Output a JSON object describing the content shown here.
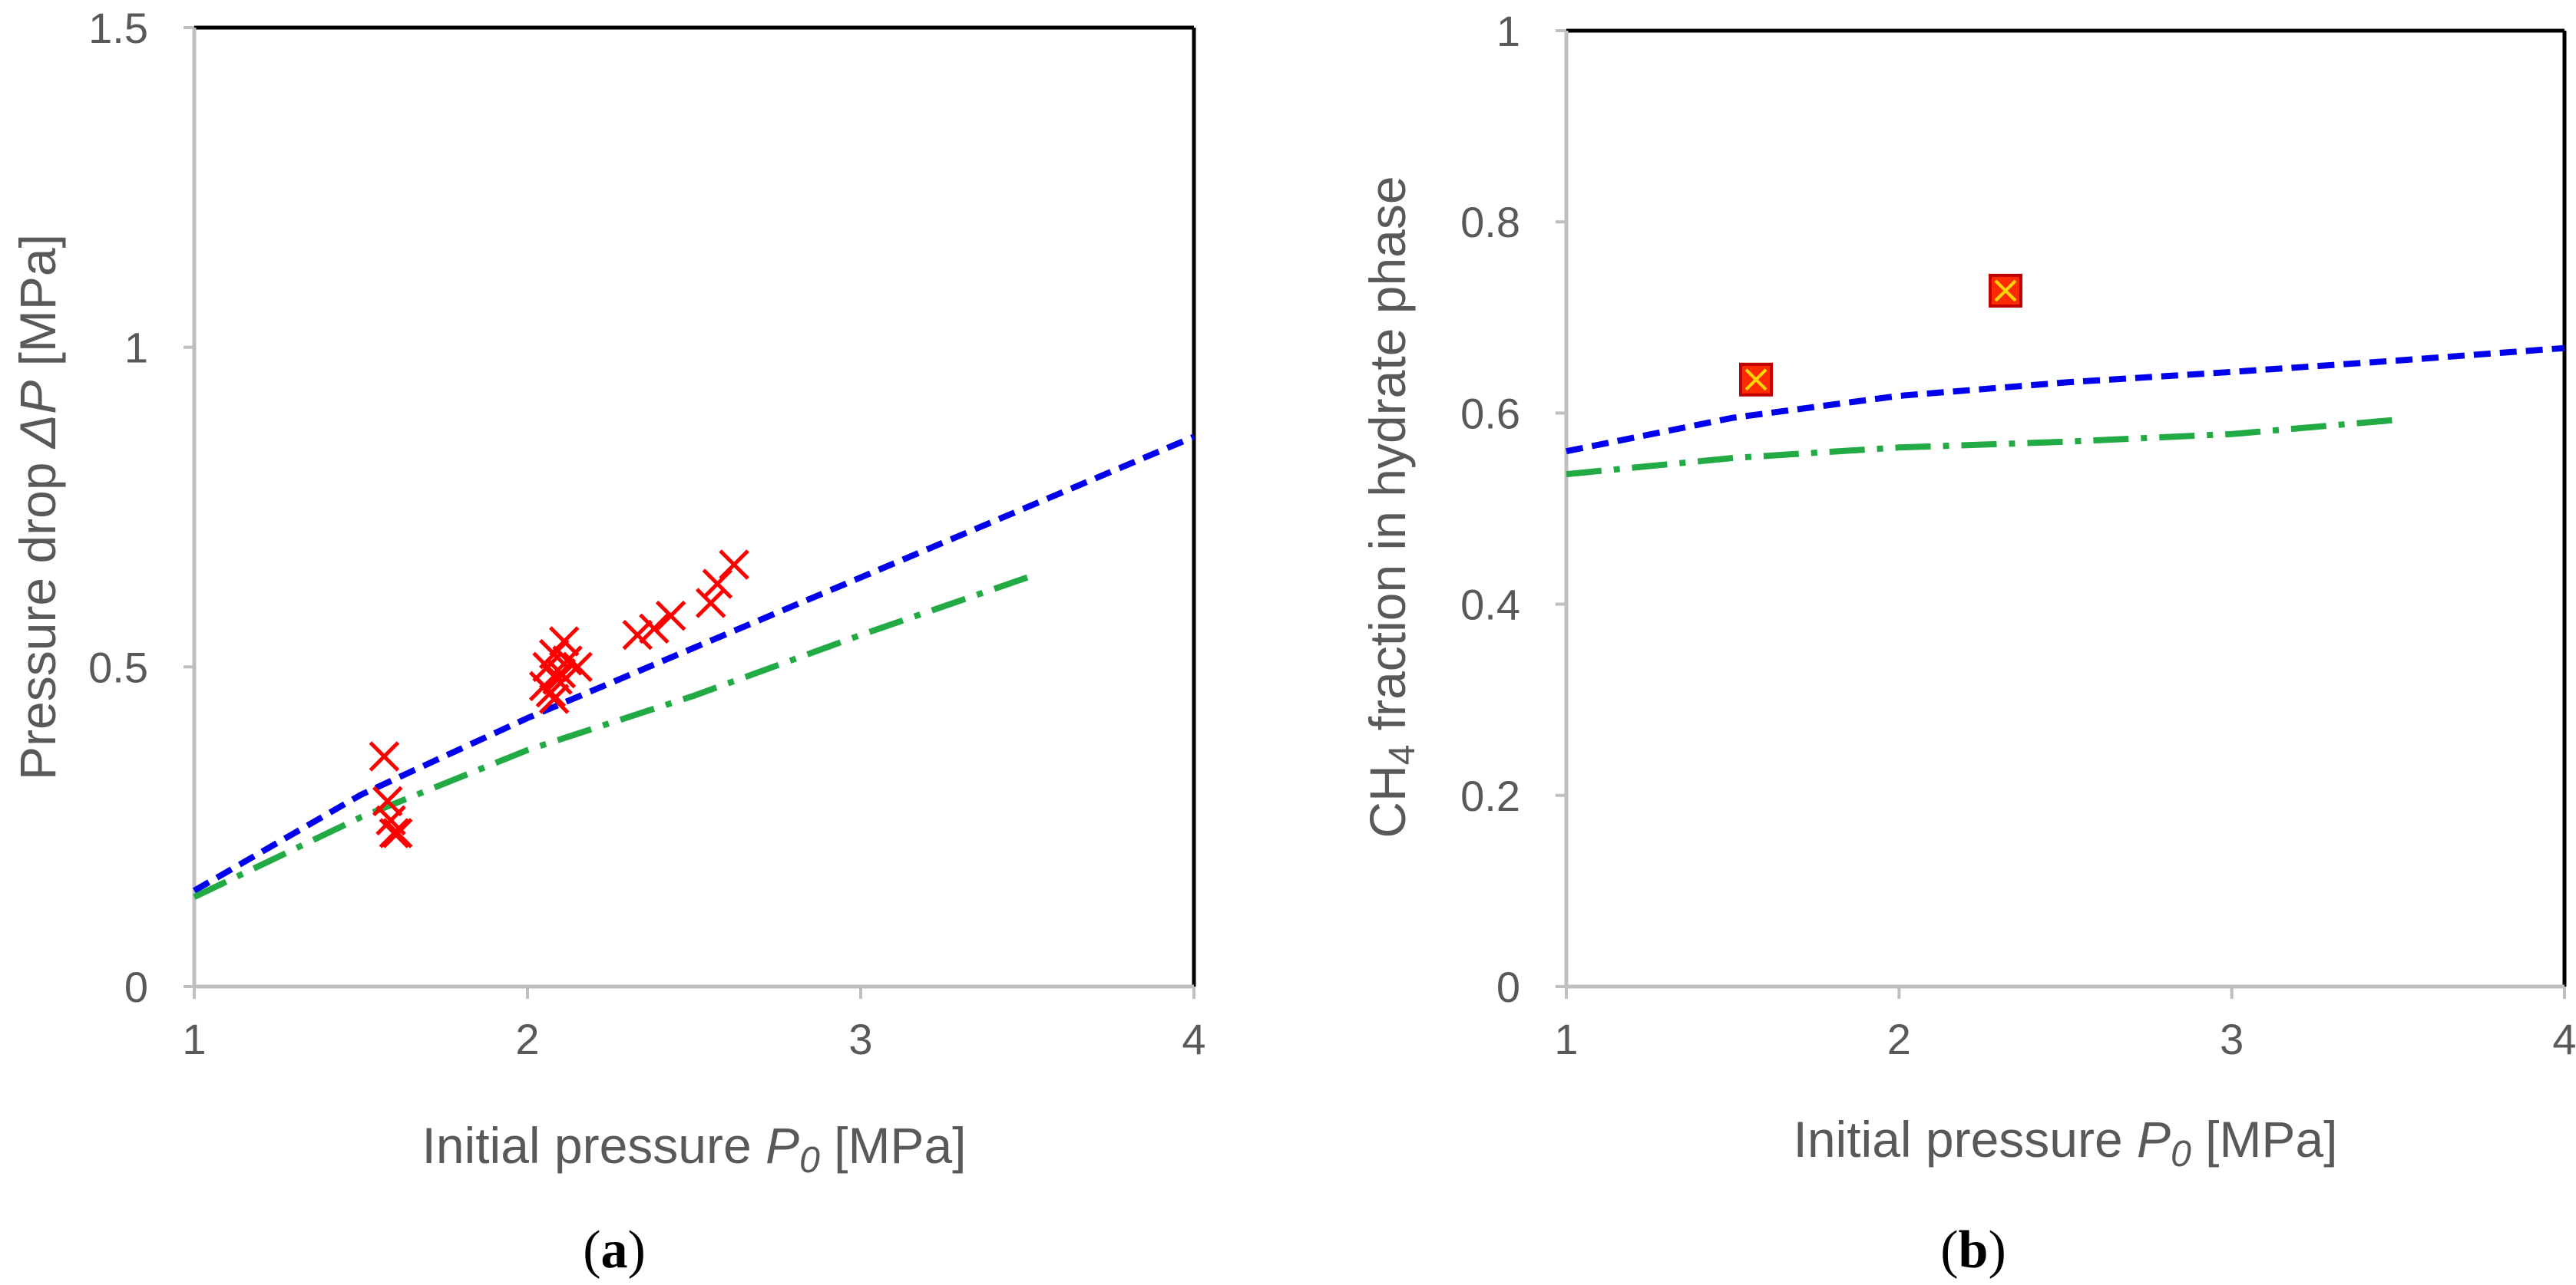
{
  "colors": {
    "axis": "#bfbfbf",
    "frame": "#000000",
    "text": "#595959",
    "model_blue": "#0000ee",
    "model_green": "#22aa44",
    "marker_red": "#ff0000",
    "marker_fill": "#ff2a00",
    "marker_yellow": "#ffd800"
  },
  "chart_data": [
    {
      "type": "scatter",
      "panel": "a",
      "xlabel": {
        "prefix": "Initial pressure ",
        "italic": "P",
        "sub": "0",
        "suffix": " [MPa]"
      },
      "ylabel": {
        "prefix": "Pressure drop ",
        "italic": "ΔP",
        "suffix": " [MPa]"
      },
      "xlim": [
        1,
        4
      ],
      "ylim": [
        0,
        1.5
      ],
      "xticks": [
        1,
        2,
        3,
        4
      ],
      "xtick_labels": [
        "1",
        "2",
        "3",
        "4"
      ],
      "yticks": [
        0,
        0.5,
        1,
        1.5
      ],
      "ytick_labels": [
        "0",
        "0.5",
        "1",
        "1.5"
      ],
      "caption": {
        "open": "(",
        "letter": "a",
        "close": ")"
      },
      "series": [
        {
          "name": "model-dashed-blue",
          "kind": "line",
          "style": "dashed",
          "color": "#0000ee",
          "x": [
            1.0,
            1.5,
            2.0,
            2.5,
            3.0,
            3.5,
            4.0
          ],
          "y": [
            0.15,
            0.3,
            0.42,
            0.53,
            0.64,
            0.75,
            0.86
          ]
        },
        {
          "name": "model-dashdot-green",
          "kind": "line",
          "style": "dashdot",
          "color": "#22aa44",
          "x": [
            1.0,
            1.5,
            2.0,
            2.5,
            3.0,
            3.5
          ],
          "y": [
            0.14,
            0.265,
            0.37,
            0.455,
            0.55,
            0.64
          ]
        },
        {
          "name": "experimental",
          "kind": "marker",
          "marker": "x",
          "color": "#ff0000",
          "x": [
            1.57,
            1.58,
            1.59,
            1.6,
            1.61,
            2.05,
            2.06,
            2.07,
            2.08,
            2.08,
            2.09,
            2.1,
            2.11,
            2.12,
            2.15,
            2.33,
            2.38,
            2.43,
            2.55,
            2.57,
            2.62
          ],
          "y": [
            0.36,
            0.29,
            0.26,
            0.24,
            0.24,
            0.47,
            0.5,
            0.46,
            0.45,
            0.52,
            0.48,
            0.49,
            0.54,
            0.51,
            0.5,
            0.55,
            0.56,
            0.58,
            0.6,
            0.63,
            0.66
          ]
        }
      ]
    },
    {
      "type": "scatter",
      "panel": "b",
      "xlabel": {
        "prefix": "Initial pressure ",
        "italic": "P",
        "sub": "0",
        "suffix": " [MPa]"
      },
      "ylabel": {
        "prefix": "CH",
        "sub": "4",
        "suffix": " fraction in hydrate phase"
      },
      "xlim": [
        1,
        4
      ],
      "ylim": [
        0,
        1
      ],
      "xticks": [
        1,
        2,
        3,
        4
      ],
      "xtick_labels": [
        "1",
        "2",
        "3",
        "4"
      ],
      "yticks": [
        0,
        0.2,
        0.4,
        0.6,
        0.8,
        1
      ],
      "ytick_labels": [
        "0",
        "0.2",
        "0.4",
        "0.6",
        "0.8",
        "1"
      ],
      "caption": {
        "open": "(",
        "letter": "b",
        "close": ")"
      },
      "series": [
        {
          "name": "model-dashed-blue",
          "kind": "line",
          "style": "dashed",
          "color": "#0000ee",
          "x": [
            1.0,
            1.5,
            2.0,
            2.5,
            3.0,
            3.5,
            4.0
          ],
          "y": [
            0.56,
            0.595,
            0.618,
            0.632,
            0.643,
            0.655,
            0.668
          ]
        },
        {
          "name": "model-dashdot-green",
          "kind": "line",
          "style": "dashdot",
          "color": "#22aa44",
          "x": [
            1.0,
            1.5,
            2.0,
            2.5,
            3.0,
            3.5
          ],
          "y": [
            0.536,
            0.553,
            0.564,
            0.57,
            0.578,
            0.593
          ]
        },
        {
          "name": "experimental",
          "kind": "marker",
          "marker": "boxed-x",
          "color": "#ff0000",
          "x": [
            1.57,
            2.32
          ],
          "y": [
            0.635,
            0.728
          ]
        }
      ]
    }
  ]
}
